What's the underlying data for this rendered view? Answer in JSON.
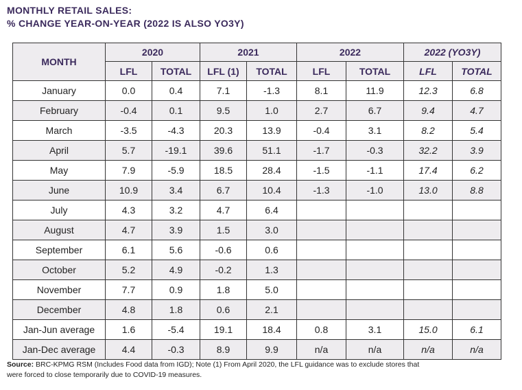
{
  "title": {
    "line1": "MONTHLY RETAIL SALES:",
    "line2": "% CHANGE YEAR-ON-YEAR (2022 IS ALSO YO3Y)"
  },
  "table": {
    "month_header": "MONTH",
    "groups": [
      "2020",
      "2021",
      "2022",
      "2022 (YO3Y)"
    ],
    "subheaders": [
      "LFL",
      "TOTAL",
      "LFL (1)",
      "TOTAL",
      "LFL",
      "TOTAL",
      "LFL",
      "TOTAL"
    ],
    "rows": [
      {
        "month": "January",
        "v": [
          "0.0",
          "0.4",
          "7.1",
          "-1.3",
          "8.1",
          "11.9",
          "12.3",
          "6.8"
        ]
      },
      {
        "month": "February",
        "v": [
          "-0.4",
          "0.1",
          "9.5",
          "1.0",
          "2.7",
          "6.7",
          "9.4",
          "4.7"
        ]
      },
      {
        "month": "March",
        "v": [
          "-3.5",
          "-4.3",
          "20.3",
          "13.9",
          "-0.4",
          "3.1",
          "8.2",
          "5.4"
        ]
      },
      {
        "month": "April",
        "v": [
          "5.7",
          "-19.1",
          "39.6",
          "51.1",
          "-1.7",
          "-0.3",
          "32.2",
          "3.9"
        ]
      },
      {
        "month": "May",
        "v": [
          "7.9",
          "-5.9",
          "18.5",
          "28.4",
          "-1.5",
          "-1.1",
          "17.4",
          "6.2"
        ]
      },
      {
        "month": "June",
        "v": [
          "10.9",
          "3.4",
          "6.7",
          "10.4",
          "-1.3",
          "-1.0",
          "13.0",
          "8.8"
        ]
      },
      {
        "month": "July",
        "v": [
          "4.3",
          "3.2",
          "4.7",
          "6.4",
          "",
          "",
          "",
          ""
        ]
      },
      {
        "month": "August",
        "v": [
          "4.7",
          "3.9",
          "1.5",
          "3.0",
          "",
          "",
          "",
          ""
        ]
      },
      {
        "month": "September",
        "v": [
          "6.1",
          "5.6",
          "-0.6",
          "0.6",
          "",
          "",
          "",
          ""
        ]
      },
      {
        "month": "October",
        "v": [
          "5.2",
          "4.9",
          "-0.2",
          "1.3",
          "",
          "",
          "",
          ""
        ]
      },
      {
        "month": "November",
        "v": [
          "7.7",
          "0.9",
          "1.8",
          "5.0",
          "",
          "",
          "",
          ""
        ]
      },
      {
        "month": "December",
        "v": [
          "4.8",
          "1.8",
          "0.6",
          "2.1",
          "",
          "",
          "",
          ""
        ]
      },
      {
        "month": "Jan-Jun average",
        "v": [
          "1.6",
          "-5.4",
          "19.1",
          "18.4",
          "0.8",
          "3.1",
          "15.0",
          "6.1"
        ]
      },
      {
        "month": "Jan-Dec average",
        "v": [
          "4.4",
          "-0.3",
          "8.9",
          "9.9",
          "n/a",
          "n/a",
          "n/a",
          "n/a"
        ]
      }
    ]
  },
  "note": {
    "label": "Source:",
    "text": " BRC-KPMG RSM (Includes Food data from IGD); Note (1) From April 2020, the LFL guidance was to exclude stores that",
    "text2": "were forced to close temporarily due to COVID-19 measures."
  }
}
